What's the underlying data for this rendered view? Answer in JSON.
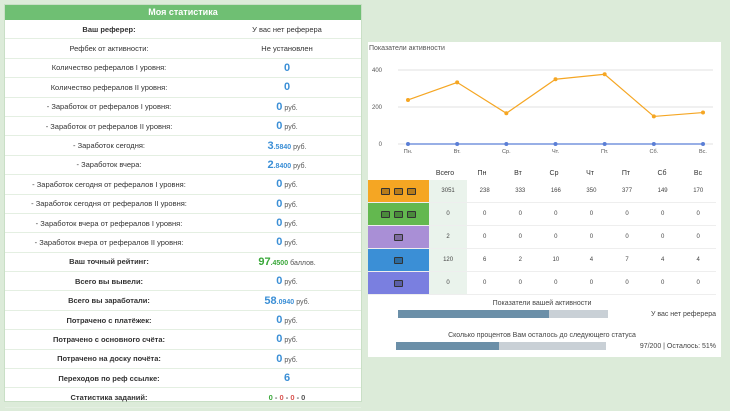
{
  "left": {
    "title": "Моя статистика",
    "rows": [
      {
        "label": "Ваш реферер:",
        "value": "У вас нет реферера",
        "bold": true
      },
      {
        "label": "Рефбек от активности:",
        "value": "Не установлен"
      },
      {
        "label": "Количество рефералов I уровня:",
        "num": "0"
      },
      {
        "label": "Количество рефералов II уровня:",
        "num": "0"
      },
      {
        "label": "- Заработок от рефералов I уровня:",
        "num": "0",
        "unit": "руб."
      },
      {
        "label": "- Заработок от рефералов II уровня:",
        "num": "0",
        "unit": "руб."
      },
      {
        "label": "- Заработок сегодня:",
        "num": "3",
        "dec": ".5840",
        "unit": "руб."
      },
      {
        "label": "- Заработок вчера:",
        "num": "2",
        "dec": ".8400",
        "unit": "руб."
      },
      {
        "label": "- Заработок сегодня от рефералов I уровня:",
        "num": "0",
        "unit": "руб."
      },
      {
        "label": "- Заработок сегодня от рефералов II уровня:",
        "num": "0",
        "unit": "руб."
      },
      {
        "label": "- Заработок вчера от рефералов I уровня:",
        "num": "0",
        "unit": "руб."
      },
      {
        "label": "- Заработок вчера от рефералов II уровня:",
        "num": "0",
        "unit": "руб."
      },
      {
        "label": "Ваш точный рейтинг:",
        "num": "97",
        "dec": ".4500",
        "unit": "баллов.",
        "bold": true,
        "green": true
      },
      {
        "label": "Всего вы вывели:",
        "num": "0",
        "unit": "руб.",
        "bold": true
      },
      {
        "label": "Всего вы заработали:",
        "num": "58",
        "dec": ".0940",
        "unit": "руб.",
        "bold": true
      },
      {
        "label": "Потрачено с платёжек:",
        "num": "0",
        "unit": "руб.",
        "bold": true
      },
      {
        "label": "Потрачено с основного счёта:",
        "num": "0",
        "unit": "руб.",
        "bold": true
      },
      {
        "label": "Потрачено на доску почёта:",
        "num": "0",
        "unit": "руб.",
        "bold": true
      },
      {
        "label": "Переходов по реф ссылке:",
        "num": "6",
        "bold": true
      },
      {
        "label": "Статистика заданий:",
        "tasks": true,
        "bold": true
      }
    ],
    "tasks": [
      "0",
      " - ",
      "0",
      " - ",
      "0",
      " - ",
      "0"
    ]
  },
  "right": {
    "chart_title": "Показатели активности",
    "chart_data": {
      "type": "line",
      "categories": [
        "Пн.",
        "Вт.",
        "Ср.",
        "Чт.",
        "Пт.",
        "Сб.",
        "Вс."
      ],
      "series": [
        {
          "values": [
            238,
            333,
            166,
            350,
            377,
            149,
            170
          ],
          "color": "#f5a623"
        },
        {
          "values": [
            0,
            0,
            0,
            0,
            0,
            0,
            0
          ],
          "color": "#5b7fd6"
        }
      ],
      "ylim": [
        0,
        400
      ],
      "yticks": [
        "400",
        "200",
        "0"
      ]
    },
    "table": {
      "headers": [
        "Всего",
        "Пн",
        "Вт",
        "Ср",
        "Чт",
        "Пт",
        "Сб",
        "Вс"
      ],
      "rows": [
        {
          "color": "#f5a623",
          "cells": [
            "3051",
            "238",
            "333",
            "166",
            "350",
            "377",
            "149",
            "170"
          ]
        },
        {
          "color": "#63b84f",
          "cells": [
            "0",
            "0",
            "0",
            "0",
            "0",
            "0",
            "0",
            "0"
          ]
        },
        {
          "color": "#a98fd6",
          "cells": [
            "2",
            "0",
            "0",
            "0",
            "0",
            "0",
            "0",
            "0"
          ]
        },
        {
          "color": "#3b8fd6",
          "cells": [
            "120",
            "6",
            "2",
            "10",
            "4",
            "7",
            "4",
            "4"
          ]
        },
        {
          "color": "#7a7fe0",
          "cells": [
            "0",
            "0",
            "0",
            "0",
            "0",
            "0",
            "0",
            "0"
          ]
        }
      ]
    },
    "activity_label": "Показатели вашей активности",
    "activity_value": "У вас нет реферера",
    "activity_fill": 0.72,
    "status_label": "Сколько процентов Вам осталось до следующего статуса",
    "status_value": "97/200 | Осталось: 51%",
    "status_fill": 0.49
  }
}
